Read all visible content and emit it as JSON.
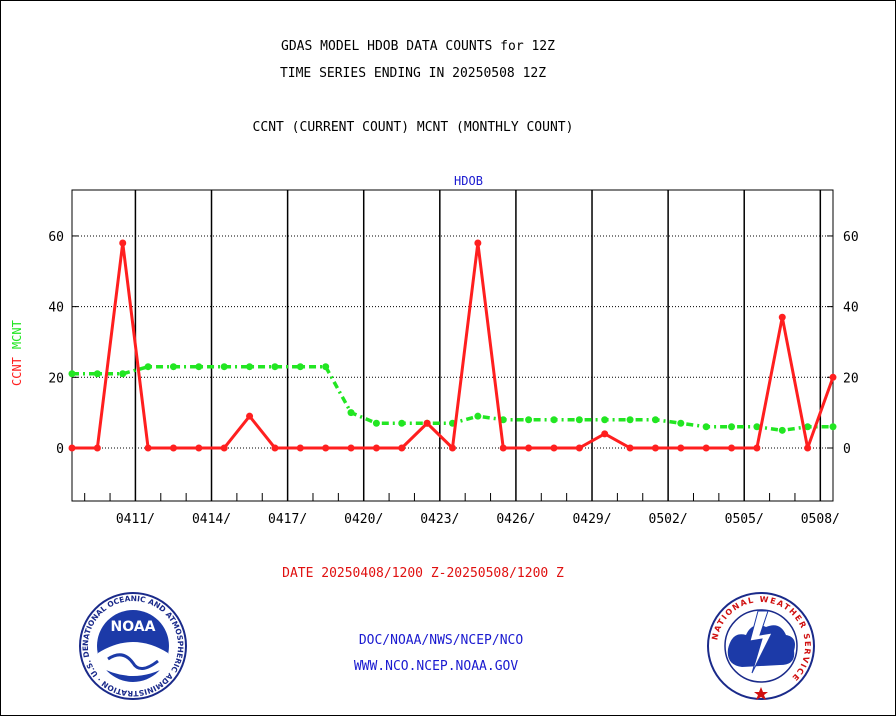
{
  "header": {
    "title_line1": "GDAS MODEL HDOB DATA COUNTS for 12Z",
    "title_line2": "TIME SERIES ENDING IN 20250508 12Z",
    "subtitle": "CCNT (CURRENT COUNT) MCNT (MONTHLY COUNT)"
  },
  "footer": {
    "date_range": "DATE 20250408/1200 Z-20250508/1200 Z",
    "org_path": "DOC/NOAA/NWS/NCEP/NCO",
    "website": "WWW.NCO.NCEP.NOAA.GOV",
    "noaa_logo_text": "NOAA",
    "noaa_ring_text": "NATIONAL OCEANIC AND ATMOSPHERIC ADMINISTRATION · U.S. DEPARTMENT OF COMMERCE",
    "nws_ring_text": "NATIONAL WEATHER SERVICE"
  },
  "chart_data": {
    "type": "line",
    "panel_label": "HDOB",
    "ylabel_ccnt": "CCNT",
    "ylabel_mcnt": "MCNT",
    "xlim": [
      0,
      30
    ],
    "ylim": [
      -15,
      73
    ],
    "yticks": [
      0,
      20,
      40,
      60
    ],
    "ytick_labels": [
      "0",
      "20",
      "40",
      "60"
    ],
    "xticks": [
      {
        "x": 2.5,
        "label": "0411/"
      },
      {
        "x": 5.5,
        "label": "0414/"
      },
      {
        "x": 8.5,
        "label": "0417/"
      },
      {
        "x": 11.5,
        "label": "0420/"
      },
      {
        "x": 14.5,
        "label": "0423/"
      },
      {
        "x": 17.5,
        "label": "0426/"
      },
      {
        "x": 20.5,
        "label": "0429/"
      },
      {
        "x": 23.5,
        "label": "0502/"
      },
      {
        "x": 26.5,
        "label": "0505/"
      },
      {
        "x": 29.5,
        "label": "0508/"
      }
    ],
    "minor_xticks": [
      0.5,
      1.5,
      3.5,
      4.5,
      6.5,
      7.5,
      9.5,
      10.5,
      12.5,
      13.5,
      15.5,
      16.5,
      18.5,
      19.5,
      21.5,
      22.5,
      24.5,
      25.5,
      27.5,
      28.5
    ],
    "grid": true,
    "colors": {
      "ccnt": "#ff1f1f",
      "mcnt": "#22e622",
      "title": "#000000",
      "panel_label": "#1a1ad0",
      "date": "#e01010",
      "links": "#1a1ad0"
    },
    "series": [
      {
        "name": "CCNT",
        "x": [
          0,
          1,
          2,
          3,
          4,
          5,
          6,
          7,
          8,
          9,
          10,
          11,
          12,
          13,
          14,
          15,
          16,
          17,
          18,
          19,
          20,
          21,
          22,
          23,
          24,
          25,
          26,
          27,
          28,
          29,
          30
        ],
        "values": [
          0,
          0,
          58,
          0,
          0,
          0,
          0,
          9,
          0,
          0,
          0,
          0,
          0,
          0,
          7,
          0,
          58,
          0,
          0,
          0,
          0,
          4,
          0,
          0,
          0,
          0,
          0,
          0,
          37,
          0,
          20
        ]
      },
      {
        "name": "MCNT",
        "x": [
          0,
          1,
          2,
          3,
          4,
          5,
          6,
          7,
          8,
          9,
          10,
          11,
          12,
          13,
          14,
          15,
          16,
          17,
          18,
          19,
          20,
          21,
          22,
          23,
          24,
          25,
          26,
          27,
          28,
          29,
          30
        ],
        "values": [
          21,
          21,
          21,
          23,
          23,
          23,
          23,
          23,
          23,
          23,
          23,
          10,
          7,
          7,
          7,
          7,
          9,
          8,
          8,
          8,
          8,
          8,
          8,
          8,
          7,
          6,
          6,
          6,
          5,
          6,
          6
        ]
      }
    ]
  }
}
